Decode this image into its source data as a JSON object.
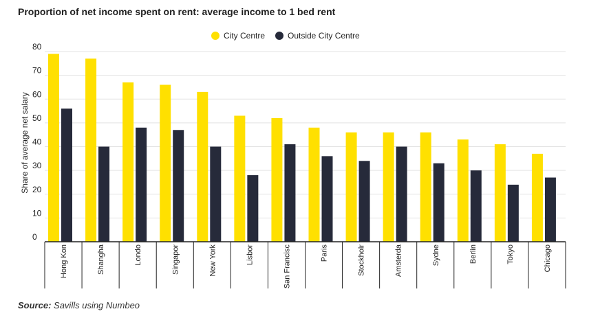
{
  "chart_data": {
    "type": "bar",
    "title": "Proportion of net income spent on rent: average income to 1 bed rent",
    "ylabel": "Share of average net salary",
    "xlabel": "",
    "ylim": [
      0,
      80
    ],
    "yticks": [
      0,
      10,
      20,
      30,
      40,
      50,
      60,
      70,
      80
    ],
    "grid": true,
    "legend_position": "top-center",
    "categories": [
      "Hong Kong",
      "Shanghai",
      "London",
      "Singapore",
      "New York",
      "Lisbon",
      "San Francisco",
      "Paris",
      "Stockholm",
      "Amsterdam",
      "Sydney",
      "Berlin",
      "Tokyo",
      "Chicago"
    ],
    "tick_labels": [
      "Hong Kon",
      "Shangha",
      "Londo",
      "Singapor",
      "New York",
      "Lisbor",
      "San Francisc",
      "Paris",
      "Stockholr",
      "Amsterda",
      "Sydne",
      "Berlin",
      "Tokyo",
      "Chicago"
    ],
    "series": [
      {
        "name": "City Centre",
        "color": "#ffe000",
        "values": [
          79,
          77,
          67,
          66,
          63,
          53,
          52,
          48,
          46,
          46,
          46,
          43,
          41,
          37
        ]
      },
      {
        "name": "Outside City Centre",
        "color": "#262a3a",
        "values": [
          56,
          40,
          48,
          47,
          40,
          28,
          41,
          36,
          34,
          40,
          33,
          30,
          24,
          27
        ]
      }
    ]
  },
  "source": {
    "label": "Source:",
    "text": "Savills using Numbeo"
  }
}
